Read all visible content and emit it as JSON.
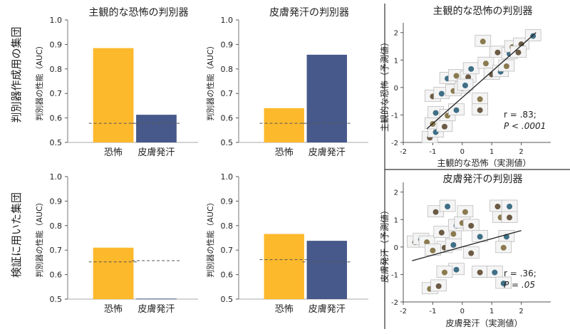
{
  "row_labels": [
    "判別器作成用の集団",
    "検証に用いた集団"
  ],
  "colors": {
    "fear": "#FDB92C",
    "scr": "#46598A",
    "chance": "#555555",
    "fit": "#222222"
  },
  "chart_data": [
    {
      "type": "bar",
      "title": "主観的な恐怖の判別器",
      "ylabel": "判別器の性能（AUC）",
      "categories": [
        "恐怖",
        "皮膚発汗"
      ],
      "values": [
        0.885,
        0.613
      ],
      "chance": [
        0.578,
        0.578
      ],
      "ylim": [
        0.5,
        1.0
      ],
      "yticks": [
        "0.5",
        "0.6",
        "0.7",
        "0.8",
        "0.9",
        "1.0"
      ]
    },
    {
      "type": "bar",
      "title": "皮膚発汗の判別器",
      "ylabel": "判別器の性能（AUC）",
      "categories": [
        "恐怖",
        "皮膚発汗"
      ],
      "values": [
        0.64,
        0.858
      ],
      "chance": [
        0.578,
        0.578
      ],
      "ylim": [
        0.5,
        1.0
      ],
      "yticks": [
        "0.5",
        "0.6",
        "0.7",
        "0.8",
        "0.9",
        "1.0"
      ]
    },
    {
      "type": "bar",
      "title": "",
      "ylabel": "判別器の性能（AUC）",
      "categories": [
        "恐怖",
        "皮膚発汗"
      ],
      "values": [
        0.71,
        0.502
      ],
      "chance": [
        0.652,
        0.657
      ],
      "ylim": [
        0.5,
        1.0
      ],
      "yticks": [
        "0.5",
        "0.6",
        "0.7",
        "0.8",
        "0.9",
        "1.0"
      ]
    },
    {
      "type": "bar",
      "title": "",
      "ylabel": "判別器の性能（AUC）",
      "categories": [
        "恐怖",
        "皮膚発汗"
      ],
      "values": [
        0.766,
        0.738
      ],
      "chance": [
        0.661,
        0.652
      ],
      "ylim": [
        0.5,
        1.0
      ],
      "yticks": [
        "0.5",
        "0.6",
        "0.7",
        "0.8",
        "0.9",
        "1.0"
      ]
    },
    {
      "type": "scatter",
      "title": "主観的な恐怖の判別器",
      "xlabel": "主観的な恐怖（実測値）",
      "ylabel": "主観的な恐怖（予測値）",
      "xlim": [
        -2,
        3
      ],
      "ylim": [
        -2,
        2.2
      ],
      "xticks": [
        -2,
        -1,
        0,
        1,
        2
      ],
      "yticks": [
        -2,
        -1,
        0,
        1,
        2
      ],
      "stat_r": "r = .83;",
      "stat_p": "P < .0001",
      "fit": [
        [
          -1.2,
          -1.5
        ],
        [
          2.5,
          2.0
        ]
      ],
      "points": [
        [
          -1.1,
          -1.8
        ],
        [
          -0.9,
          -1.6
        ],
        [
          -1.0,
          -1.3
        ],
        [
          -0.6,
          -1.4
        ],
        [
          -0.9,
          -0.9
        ],
        [
          -0.5,
          -1.0
        ],
        [
          -1.0,
          -0.3
        ],
        [
          -0.7,
          -0.2
        ],
        [
          -0.3,
          -0.1
        ],
        [
          0.0,
          0.0
        ],
        [
          -0.5,
          0.35
        ],
        [
          -0.2,
          0.45
        ],
        [
          0.2,
          0.4
        ],
        [
          0.1,
          0.1
        ],
        [
          0.6,
          -0.4
        ],
        [
          0.6,
          -0.8
        ],
        [
          0.3,
          0.7
        ],
        [
          0.8,
          0.9
        ],
        [
          1.0,
          0.5
        ],
        [
          1.3,
          0.6
        ],
        [
          1.5,
          0.8
        ],
        [
          1.2,
          1.3
        ],
        [
          1.6,
          1.25
        ],
        [
          1.7,
          1.5
        ],
        [
          2.0,
          1.6
        ],
        [
          2.4,
          1.9
        ],
        [
          0.7,
          1.7
        ],
        [
          1.9,
          1.3
        ],
        [
          -0.2,
          -0.8
        ]
      ]
    },
    {
      "type": "scatter",
      "title": "皮膚発汗の判別器",
      "xlabel": "皮膚発汗（実測値）",
      "ylabel": "皮膚発汗（予測値）",
      "xlim": [
        -2,
        3
      ],
      "ylim": [
        -2,
        2.2
      ],
      "xticks": [
        -2,
        -1,
        0,
        1,
        2
      ],
      "yticks": [
        -2,
        -1,
        0,
        1,
        2
      ],
      "stat_r": "r = .36;",
      "stat_p": "P = .05",
      "fit": [
        [
          -1.7,
          -0.5
        ],
        [
          2.0,
          0.6
        ]
      ],
      "points": [
        [
          -1.6,
          0.2
        ],
        [
          -1.4,
          0.3
        ],
        [
          -1.2,
          0.2
        ],
        [
          -0.6,
          0.0
        ],
        [
          -0.3,
          0.1
        ],
        [
          -0.3,
          0.5
        ],
        [
          -0.7,
          0.55
        ],
        [
          -0.2,
          0.8
        ],
        [
          0.0,
          0.9
        ],
        [
          0.3,
          0.8
        ],
        [
          0.6,
          0.4
        ],
        [
          1.3,
          1.1
        ],
        [
          1.6,
          1.1
        ],
        [
          1.5,
          0.4
        ],
        [
          1.4,
          0.0
        ],
        [
          -0.9,
          1.3
        ],
        [
          -0.5,
          1.5
        ],
        [
          0.1,
          1.3
        ],
        [
          1.2,
          1.5
        ],
        [
          1.6,
          1.5
        ],
        [
          -1.0,
          -0.1
        ],
        [
          0.3,
          -0.2
        ],
        [
          -0.2,
          -0.8
        ],
        [
          -0.6,
          -0.9
        ],
        [
          0.6,
          -0.9
        ],
        [
          1.1,
          -0.9
        ],
        [
          -1.1,
          -1.5
        ],
        [
          -0.8,
          -1.4
        ],
        [
          1.4,
          -1.3
        ]
      ]
    }
  ]
}
